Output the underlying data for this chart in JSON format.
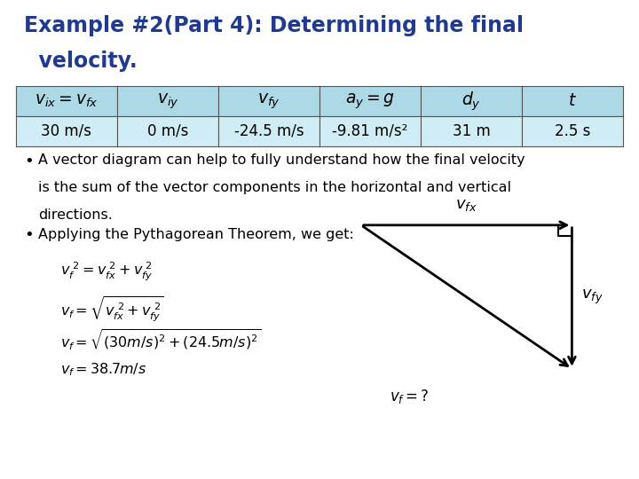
{
  "title_line1": "Example #2(Part 4): Determining the final",
  "title_line2": "  velocity.",
  "title_color": "#1f3a8f",
  "title_fontsize": 17,
  "bg_color": "#ffffff",
  "table_header": [
    "$v_{ix} = v_{fx}$",
    "$v_{iy}$",
    "$v_{fy}$",
    "$a_y = g$",
    "$d_y$",
    "$t$"
  ],
  "table_values": [
    "30 m/s",
    "0 m/s",
    "-24.5 m/s",
    "-9.81 m/s²",
    "31 m",
    "2.5 s"
  ],
  "table_header_bg": "#add8e6",
  "table_value_bg": "#d0edf5",
  "table_border": "#555555",
  "bullet1_line1": "A vector diagram can help to fully understand how the final velocity",
  "bullet1_line2": "is the sum of the vector components in the horizontal and vertical",
  "bullet1_line3": "directions.",
  "bullet2": "Applying the Pythagorean Theorem, we get:",
  "eq1": "$v_f^{\\ 2} = v_{fx}^{\\ 2} + v_{fy}^{\\ 2}$",
  "eq2": "$v_f = \\sqrt{v_{fx}^{\\ 2} + v_{fy}^{\\ 2}}$",
  "eq3": "$v_f = \\sqrt{(30m/s)^2 + (24.5m/s)^2}$",
  "eq4": "$v_f = 38.7 m/s$",
  "label_vfx": "$v_{fx}$",
  "label_vfy": "$v_{fy}$",
  "label_vf": "$v_f = ?$",
  "arrow_color": "#000000",
  "text_color": "#000000",
  "bullet_fontsize": 11.5,
  "eq_fontsize": 11.5
}
